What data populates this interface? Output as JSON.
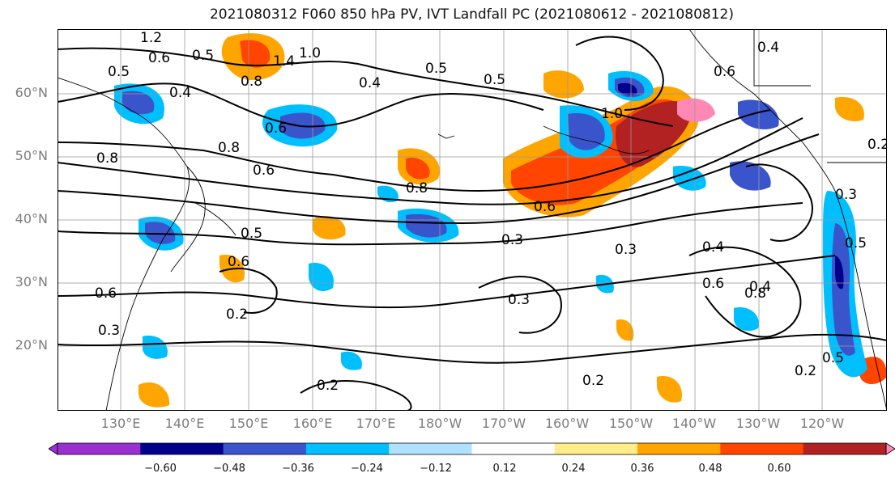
{
  "title": "2021080312 F060 850 hPa PV, IVT Landfall PC (2021080612 - 2021080812)",
  "lat_labels": [
    "60°N",
    "50°N",
    "40°N",
    "30°N",
    "20°N"
  ],
  "lon_labels": [
    "130°E",
    "140°E",
    "150°E",
    "160°E",
    "170°E",
    "180°W",
    "170°W",
    "160°W",
    "150°W",
    "140°W",
    "130°W",
    "120°W"
  ],
  "contour_labels": [
    "1.2",
    "0.6",
    "0.5",
    "1.4",
    "1.0",
    "0.4",
    "0.8",
    "0.5",
    "0.6",
    "0.5",
    "0.4",
    "0.8",
    "0.6",
    "1.0",
    "0.6",
    "0.5",
    "0.4",
    "0.8",
    "0.6",
    "0.3",
    "0.4",
    "0.3",
    "0.2",
    "0.8",
    "0.5",
    "0.6",
    "0.6",
    "0.2",
    "0.3",
    "0.4",
    "0.6",
    "0.8",
    "0.3",
    "0.2",
    "0.5",
    "0.2",
    "0.2",
    "0.5",
    "0.3"
  ],
  "colorbar": {
    "ticks": [
      "−0.60",
      "−0.48",
      "−0.36",
      "−0.24",
      "−0.12",
      "0.12",
      "0.24",
      "0.36",
      "0.48",
      "0.60"
    ],
    "colors": [
      "#9b30d0",
      "#00008b",
      "#3a55cc",
      "#00bfff",
      "#b0e2ff",
      "#ffffff",
      "#ffec8b",
      "#ffa500",
      "#ff4500",
      "#b22222",
      "#ff88b4",
      "#ff88b4"
    ]
  },
  "map_colors": {
    "gridline": "#999999",
    "contour": "#000000"
  }
}
